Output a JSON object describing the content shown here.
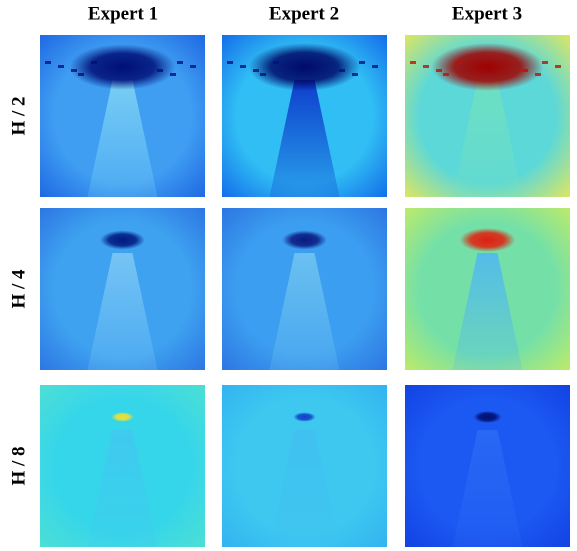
{
  "columns": [
    "Expert 1",
    "Expert 2",
    "Expert 3"
  ],
  "rows": [
    "H / 2",
    "H / 4",
    "H / 8"
  ]
}
